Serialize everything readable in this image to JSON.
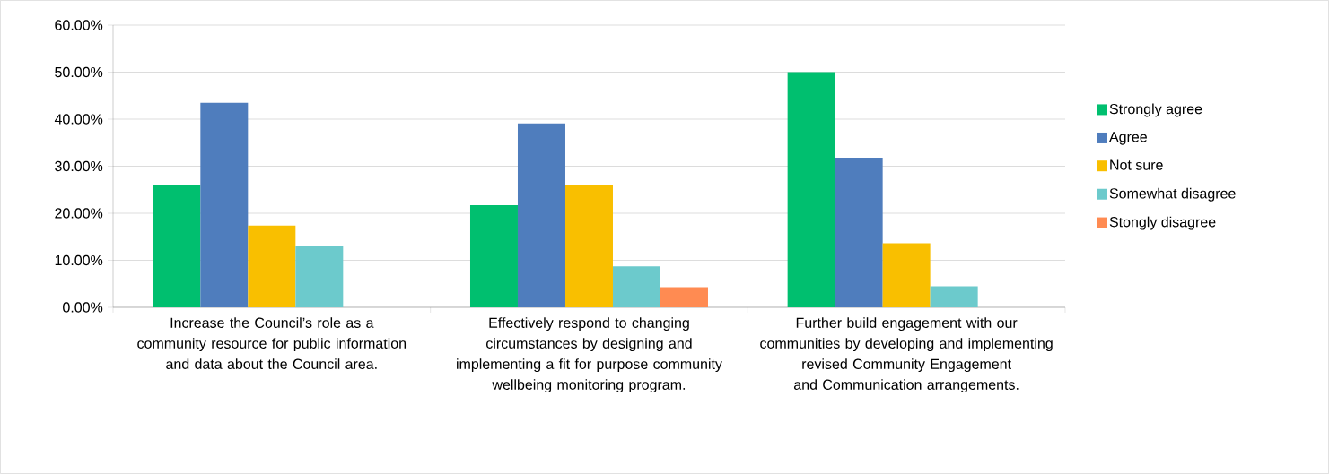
{
  "chart_data": {
    "type": "bar",
    "categories": [
      "Increase the Council’s role as a community resource for public information and data about the Council area.",
      "Effectively respond to changing circumstances by designing and implementing a fit for purpose community wellbeing monitoring program.",
      "Further build engagement with our communities by developing and implementing revised Community Engagement and Communication arrangements."
    ],
    "series": [
      {
        "name": "Strongly agree",
        "color": "#00bf6f",
        "values": [
          26.1,
          21.7,
          50.0
        ]
      },
      {
        "name": "Agree",
        "color": "#4f7dbd",
        "values": [
          43.5,
          39.1,
          31.8
        ]
      },
      {
        "name": "Not sure",
        "color": "#f9bf00",
        "values": [
          17.4,
          26.1,
          13.6
        ]
      },
      {
        "name": "Somewhat disagree",
        "color": "#6ccacc",
        "values": [
          13.0,
          8.7,
          4.5
        ]
      },
      {
        "name": "Stongly disagree",
        "color": "#ff8b52",
        "values": [
          null,
          4.3,
          null
        ]
      }
    ],
    "ylim": [
      0,
      60
    ],
    "yticks": [
      {
        "value": 0,
        "label": "0.00%"
      },
      {
        "value": 10,
        "label": "10.00%"
      },
      {
        "value": 20,
        "label": "20.00%"
      },
      {
        "value": 30,
        "label": "30.00%"
      },
      {
        "value": 40,
        "label": "40.00%"
      },
      {
        "value": 50,
        "label": "50.00%"
      },
      {
        "value": 60,
        "label": "60.00%"
      }
    ],
    "grid": "y",
    "legend": "right"
  }
}
